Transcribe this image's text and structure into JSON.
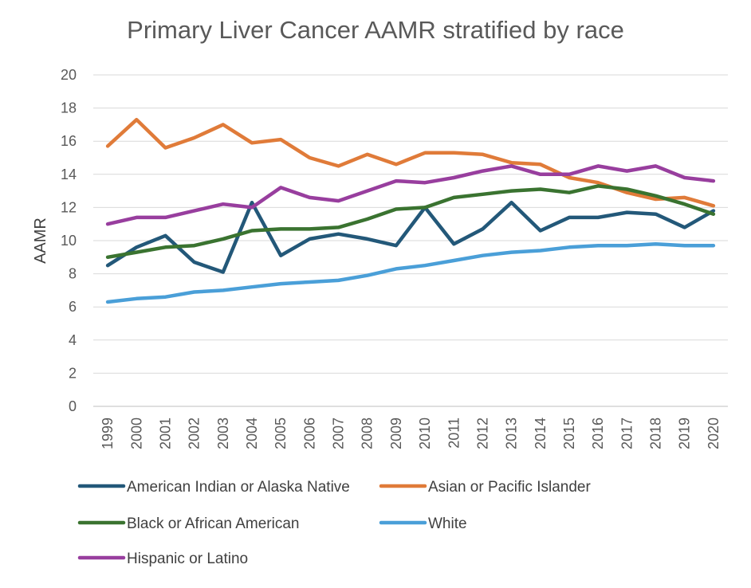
{
  "chart_data": {
    "type": "line",
    "title": "Primary Liver Cancer AAMR stratified by race",
    "xlabel": "",
    "ylabel": "AAMR",
    "ylim": [
      0,
      20
    ],
    "yticks": [
      0,
      2,
      4,
      6,
      8,
      10,
      12,
      14,
      16,
      18,
      20
    ],
    "grid": true,
    "legend_position": "bottom",
    "categories": [
      "1999",
      "2000",
      "2001",
      "2002",
      "2003",
      "2004",
      "2005",
      "2006",
      "2007",
      "2008",
      "2009",
      "2010",
      "2011",
      "2012",
      "2013",
      "2014",
      "2015",
      "2016",
      "2017",
      "2018",
      "2019",
      "2020"
    ],
    "series": [
      {
        "name": "American Indian or Alaska Native",
        "color": "#235879",
        "values": [
          8.5,
          9.6,
          10.3,
          8.7,
          8.1,
          12.3,
          9.1,
          10.1,
          10.4,
          10.1,
          9.7,
          12.0,
          9.8,
          10.7,
          12.3,
          10.6,
          11.4,
          11.4,
          11.7,
          11.6,
          10.8,
          11.8
        ]
      },
      {
        "name": "Asian or Pacific Islander",
        "color": "#E07B39",
        "values": [
          15.7,
          17.3,
          15.6,
          16.2,
          17.0,
          15.9,
          16.1,
          15.0,
          14.5,
          15.2,
          14.6,
          15.3,
          15.3,
          15.2,
          14.7,
          14.6,
          13.8,
          13.5,
          12.9,
          12.5,
          12.6,
          12.1
        ]
      },
      {
        "name": "Black or African American",
        "color": "#3A7330",
        "values": [
          9.0,
          9.3,
          9.6,
          9.7,
          10.1,
          10.6,
          10.7,
          10.7,
          10.8,
          11.3,
          11.9,
          12.0,
          12.6,
          12.8,
          13.0,
          13.1,
          12.9,
          13.3,
          13.1,
          12.7,
          12.2,
          11.6
        ]
      },
      {
        "name": "White",
        "color": "#4A9FD8",
        "values": [
          6.3,
          6.5,
          6.6,
          6.9,
          7.0,
          7.2,
          7.4,
          7.5,
          7.6,
          7.9,
          8.3,
          8.5,
          8.8,
          9.1,
          9.3,
          9.4,
          9.6,
          9.7,
          9.7,
          9.8,
          9.7,
          9.7
        ]
      },
      {
        "name": "Hispanic or Latino",
        "color": "#983E9E",
        "values": [
          11.0,
          11.4,
          11.4,
          11.8,
          12.2,
          12.0,
          13.2,
          12.6,
          12.4,
          13.0,
          13.6,
          13.5,
          13.8,
          14.2,
          14.5,
          14.0,
          14.0,
          14.5,
          14.2,
          14.5,
          13.8,
          13.6
        ]
      }
    ]
  }
}
